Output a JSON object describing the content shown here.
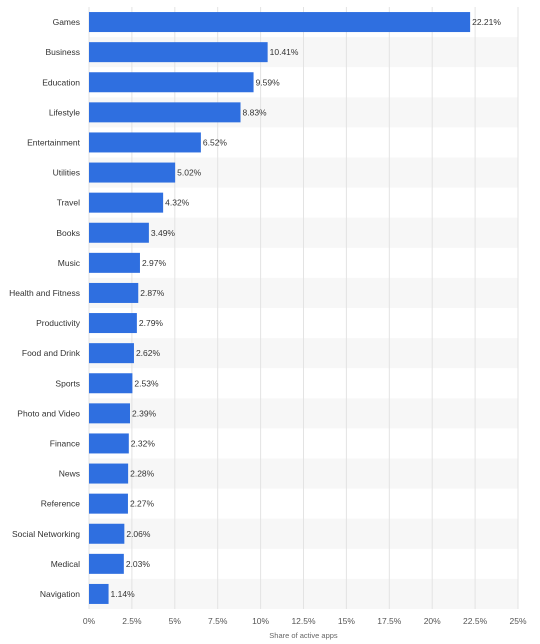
{
  "chart_data": {
    "type": "bar",
    "orientation": "horizontal",
    "categories": [
      "Games",
      "Business",
      "Education",
      "Lifestyle",
      "Entertainment",
      "Utilities",
      "Travel",
      "Books",
      "Music",
      "Health and Fitness",
      "Productivity",
      "Food and Drink",
      "Sports",
      "Photo and Video",
      "Finance",
      "News",
      "Reference",
      "Social Networking",
      "Medical",
      "Navigation"
    ],
    "values": [
      22.21,
      10.41,
      9.59,
      8.83,
      6.52,
      5.02,
      4.32,
      3.49,
      2.97,
      2.87,
      2.79,
      2.62,
      2.53,
      2.39,
      2.32,
      2.28,
      2.27,
      2.06,
      2.03,
      1.14
    ],
    "value_labels": [
      "22.21%",
      "10.41%",
      "9.59%",
      "8.83%",
      "6.52%",
      "5.02%",
      "4.32%",
      "3.49%",
      "2.97%",
      "2.87%",
      "2.79%",
      "2.62%",
      "2.53%",
      "2.39%",
      "2.32%",
      "2.28%",
      "2.27%",
      "2.06%",
      "2.03%",
      "1.14%"
    ],
    "xlim": [
      0,
      25
    ],
    "x_ticks": [
      0,
      2.5,
      5,
      7.5,
      10,
      12.5,
      15,
      17.5,
      20,
      22.5,
      25
    ],
    "x_tick_labels": [
      "0%",
      "2.5%",
      "5%",
      "7.5%",
      "10%",
      "12.5%",
      "15%",
      "17.5%",
      "20%",
      "22.5%",
      "25%"
    ],
    "xlabel": "Share of active apps",
    "ylabel": "",
    "title": "",
    "grid": true,
    "legend": "none",
    "colors": {
      "bar": "#2f6fe0",
      "grid": "#e3e3e3",
      "band": "#f7f7f7"
    }
  }
}
